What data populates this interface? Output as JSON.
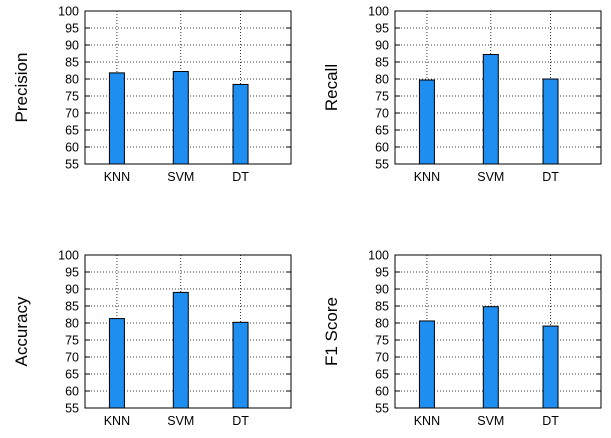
{
  "colors": {
    "bar_fill": "#1f8ef1",
    "bar_stroke": "#000000",
    "grid": "#000000",
    "frame": "#000000"
  },
  "chart_data": [
    {
      "type": "bar",
      "categories": [
        "KNN",
        "SVM",
        "DT"
      ],
      "values": [
        81.8,
        82.2,
        78.4
      ],
      "ylabel": "Precision",
      "xlabel": "",
      "title": "",
      "ylim": [
        55,
        100
      ],
      "yticks": [
        55,
        60,
        65,
        70,
        75,
        80,
        85,
        90,
        95,
        100
      ],
      "grid": true
    },
    {
      "type": "bar",
      "categories": [
        "KNN",
        "SVM",
        "DT"
      ],
      "values": [
        79.7,
        87.2,
        80.0
      ],
      "ylabel": "Recall",
      "xlabel": "",
      "title": "",
      "ylim": [
        55,
        100
      ],
      "yticks": [
        55,
        60,
        65,
        70,
        75,
        80,
        85,
        90,
        95,
        100
      ],
      "grid": true
    },
    {
      "type": "bar",
      "categories": [
        "KNN",
        "SVM",
        "DT"
      ],
      "values": [
        81.3,
        89.0,
        80.2
      ],
      "ylabel": "Accuracy",
      "xlabel": "",
      "title": "",
      "ylim": [
        55,
        100
      ],
      "yticks": [
        55,
        60,
        65,
        70,
        75,
        80,
        85,
        90,
        95,
        100
      ],
      "grid": true
    },
    {
      "type": "bar",
      "categories": [
        "KNN",
        "SVM",
        "DT"
      ],
      "values": [
        80.6,
        84.8,
        79.1
      ],
      "ylabel": "F1 Score",
      "xlabel": "",
      "title": "",
      "ylim": [
        55,
        100
      ],
      "yticks": [
        55,
        60,
        65,
        70,
        75,
        80,
        85,
        90,
        95,
        100
      ],
      "grid": true
    }
  ]
}
